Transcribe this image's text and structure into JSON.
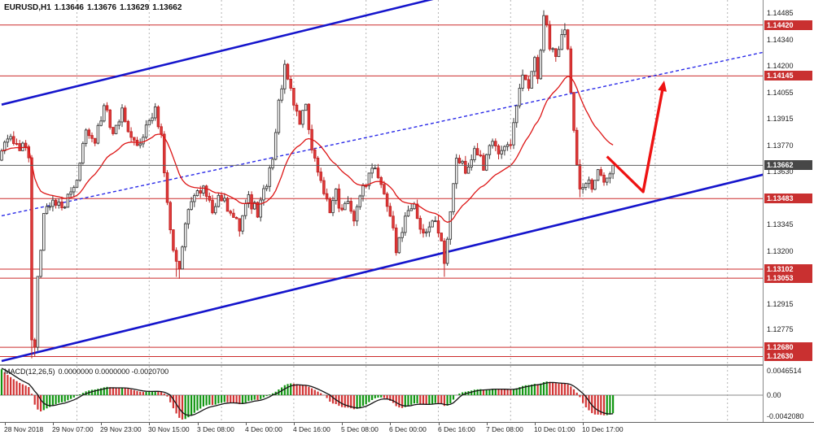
{
  "header": {
    "symbol_period": "EURUSD,H1",
    "open": "1.13646",
    "high": "1.13676",
    "low": "1.13629",
    "close": "1.13662"
  },
  "price_axis": {
    "labels": [
      "1.14485",
      "1.14340",
      "1.14200",
      "1.14055",
      "1.13915",
      "1.13770",
      "1.13630",
      "1.13485",
      "1.13345",
      "1.13200",
      "1.13060",
      "1.12915",
      "1.12775",
      "1.12630"
    ],
    "current_price": "1.13662"
  },
  "time_axis": {
    "labels": [
      "28 Nov 2018",
      "29 Nov 07:00",
      "29 Nov 23:00",
      "30 Nov 15:00",
      "3 Dec 08:00",
      "4 Dec 00:00",
      "4 Dec 16:00",
      "5 Dec 08:00",
      "6 Dec 00:00",
      "6 Dec 16:00",
      "7 Dec 08:00",
      "10 Dec 01:00",
      "10 Dec 17:00"
    ]
  },
  "macd_panel": {
    "label_name": "MACD",
    "label_params": "(12,26,5)",
    "label_values": "0.0000000 0.0000000 -0.0020700",
    "axis_max": "0.0046514",
    "axis_zero": "0.00",
    "axis_min": "-0.0042080"
  },
  "colors": {
    "bull_body": "#ffffff",
    "bull_border": "#3a3a3a",
    "bear_body": "#e23b3b",
    "bear_border": "#c02323",
    "hline": "#cc2b2b",
    "label_bg": "#c93030",
    "current_bg": "#474747",
    "channel": "#1515cc",
    "trendline": "#2929e8",
    "ma": "#dd1515",
    "arrow": "#ee1212",
    "macd_up": "#119611",
    "macd_down": "#d23434",
    "signal": "#161616",
    "grid": "#b5b5b5",
    "zero_line": "#8a8a8a",
    "current_line": "#5f5f5f"
  },
  "chart_data": {
    "type": "candlestick",
    "symbol": "EURUSD",
    "timeframe": "H1",
    "bars": 204,
    "current_price": 1.13662,
    "price_path": [
      [
        0,
        1.1374
      ],
      [
        3,
        1.1381
      ],
      [
        6,
        1.1377
      ],
      [
        9,
        1.1373
      ],
      [
        10,
        1.1272
      ],
      [
        11,
        1.1268
      ],
      [
        12,
        1.1308
      ],
      [
        14,
        1.1338
      ],
      [
        17,
        1.135
      ],
      [
        20,
        1.1342
      ],
      [
        23,
        1.1354
      ],
      [
        25,
        1.1358
      ],
      [
        28,
        1.1388
      ],
      [
        31,
        1.1379
      ],
      [
        34,
        1.1397
      ],
      [
        37,
        1.1386
      ],
      [
        40,
        1.1395
      ],
      [
        43,
        1.1381
      ],
      [
        46,
        1.1377
      ],
      [
        49,
        1.1391
      ],
      [
        51,
        1.1398
      ],
      [
        53,
        1.1382
      ],
      [
        55,
        1.1348
      ],
      [
        57,
        1.132
      ],
      [
        59,
        1.1308
      ],
      [
        61,
        1.1336
      ],
      [
        64,
        1.1349
      ],
      [
        67,
        1.1356
      ],
      [
        70,
        1.1343
      ],
      [
        73,
        1.135
      ],
      [
        76,
        1.1339
      ],
      [
        79,
        1.1333
      ],
      [
        82,
        1.1348
      ],
      [
        85,
        1.1341
      ],
      [
        88,
        1.1356
      ],
      [
        90,
        1.1368
      ],
      [
        92,
        1.14
      ],
      [
        94,
        1.1418
      ],
      [
        96,
        1.1406
      ],
      [
        99,
        1.139
      ],
      [
        101,
        1.1397
      ],
      [
        103,
        1.1377
      ],
      [
        105,
        1.1362
      ],
      [
        107,
        1.1352
      ],
      [
        109,
        1.1341
      ],
      [
        111,
        1.1351
      ],
      [
        113,
        1.134
      ],
      [
        115,
        1.1347
      ],
      [
        117,
        1.1336
      ],
      [
        119,
        1.1349
      ],
      [
        121,
        1.1358
      ],
      [
        124,
        1.1364
      ],
      [
        127,
        1.1353
      ],
      [
        129,
        1.1339
      ],
      [
        131,
        1.1322
      ],
      [
        134,
        1.1337
      ],
      [
        137,
        1.1344
      ],
      [
        140,
        1.133
      ],
      [
        143,
        1.1336
      ],
      [
        145,
        1.1332
      ],
      [
        147,
        1.1313
      ],
      [
        149,
        1.134
      ],
      [
        151,
        1.1371
      ],
      [
        154,
        1.1363
      ],
      [
        157,
        1.1374
      ],
      [
        160,
        1.1366
      ],
      [
        163,
        1.138
      ],
      [
        166,
        1.1372
      ],
      [
        169,
        1.1378
      ],
      [
        171,
        1.1398
      ],
      [
        173,
        1.1415
      ],
      [
        175,
        1.1407
      ],
      [
        177,
        1.1422
      ],
      [
        178,
        1.1414
      ],
      [
        180,
        1.1447
      ],
      [
        182,
        1.1432
      ],
      [
        184,
        1.1424
      ],
      [
        186,
        1.1437
      ],
      [
        187,
        1.144
      ],
      [
        188,
        1.1428
      ],
      [
        189,
        1.1408
      ],
      [
        190,
        1.1385
      ],
      [
        191,
        1.1366
      ],
      [
        192,
        1.1353
      ],
      [
        194,
        1.1359
      ],
      [
        196,
        1.1353
      ],
      [
        198,
        1.1362
      ],
      [
        200,
        1.1357
      ],
      [
        202,
        1.1363
      ],
      [
        203,
        1.13662
      ]
    ],
    "wick_overrides": {
      "10": {
        "low": 1.1262
      },
      "11": {
        "low": 1.1263
      },
      "58": {
        "low": 1.1306
      },
      "59": {
        "low": 1.1305
      },
      "94": {
        "high": 1.1422
      },
      "147": {
        "low": 1.1306
      },
      "180": {
        "high": 1.14495
      },
      "187": {
        "high": 1.1443
      },
      "192": {
        "low": 1.1349
      }
    },
    "horizontal_lines": [
      {
        "price": 1.1442,
        "label": "1.14420"
      },
      {
        "price": 1.14145,
        "label": "1.14145"
      },
      {
        "price": 1.13483,
        "label": "1.13483"
      },
      {
        "price": 1.13102,
        "label": "1.13102"
      },
      {
        "price": 1.13053,
        "label": "1.13053"
      },
      {
        "price": 1.1268,
        "label": "1.12680"
      },
      {
        "price": 1.1263,
        "label": "1.12630"
      }
    ],
    "channel_upper": [
      [
        0,
        1.1399
      ],
      [
        253,
        1.14997
      ]
    ],
    "channel_lower": [
      [
        0,
        1.12606
      ],
      [
        253,
        1.13613
      ]
    ],
    "trendline_dotted": [
      [
        0,
        1.1339
      ],
      [
        253,
        1.14273
      ]
    ],
    "arrow_annotation": {
      "segment": [
        [
          201,
          1.1371
        ],
        [
          213,
          1.1352
        ]
      ],
      "arrow": [
        [
          213,
          1.1352
        ],
        [
          220,
          1.1412
        ]
      ]
    },
    "moving_average": {
      "type": "EMA",
      "period": 24
    },
    "macd": {
      "fast": 12,
      "slow": 26,
      "signal": 5
    }
  }
}
